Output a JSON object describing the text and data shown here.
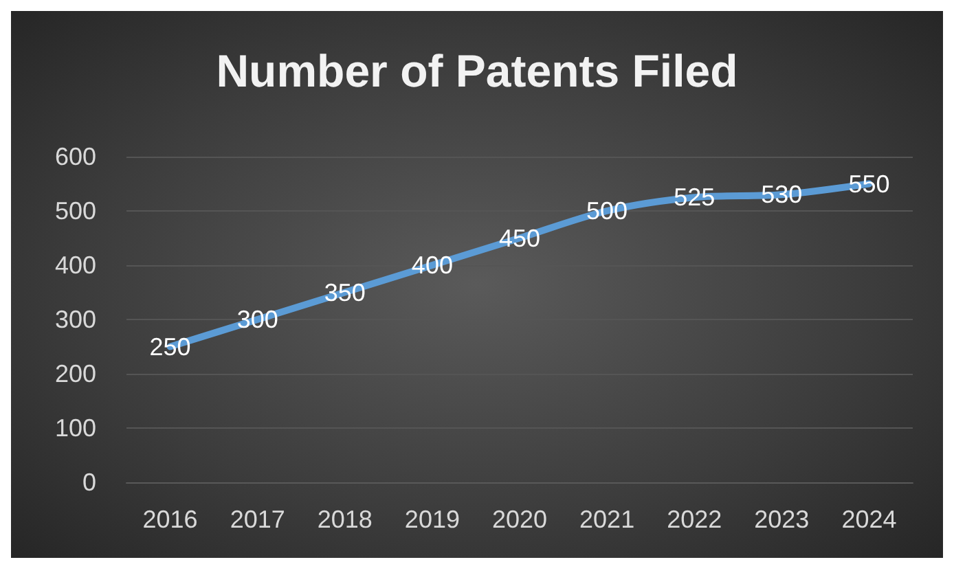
{
  "chart_data": {
    "type": "line",
    "title": "Number of Patents Filed",
    "categories": [
      "2016",
      "2017",
      "2018",
      "2019",
      "2020",
      "2021",
      "2022",
      "2023",
      "2024"
    ],
    "values": [
      250,
      300,
      350,
      400,
      450,
      500,
      525,
      530,
      550
    ],
    "color": "#5b9bd5",
    "ylim": [
      0,
      600
    ],
    "yticks": [
      0,
      100,
      200,
      300,
      400,
      500,
      600
    ],
    "grid": "y",
    "data_labels": true,
    "marker": "none",
    "line_style": "solid"
  }
}
